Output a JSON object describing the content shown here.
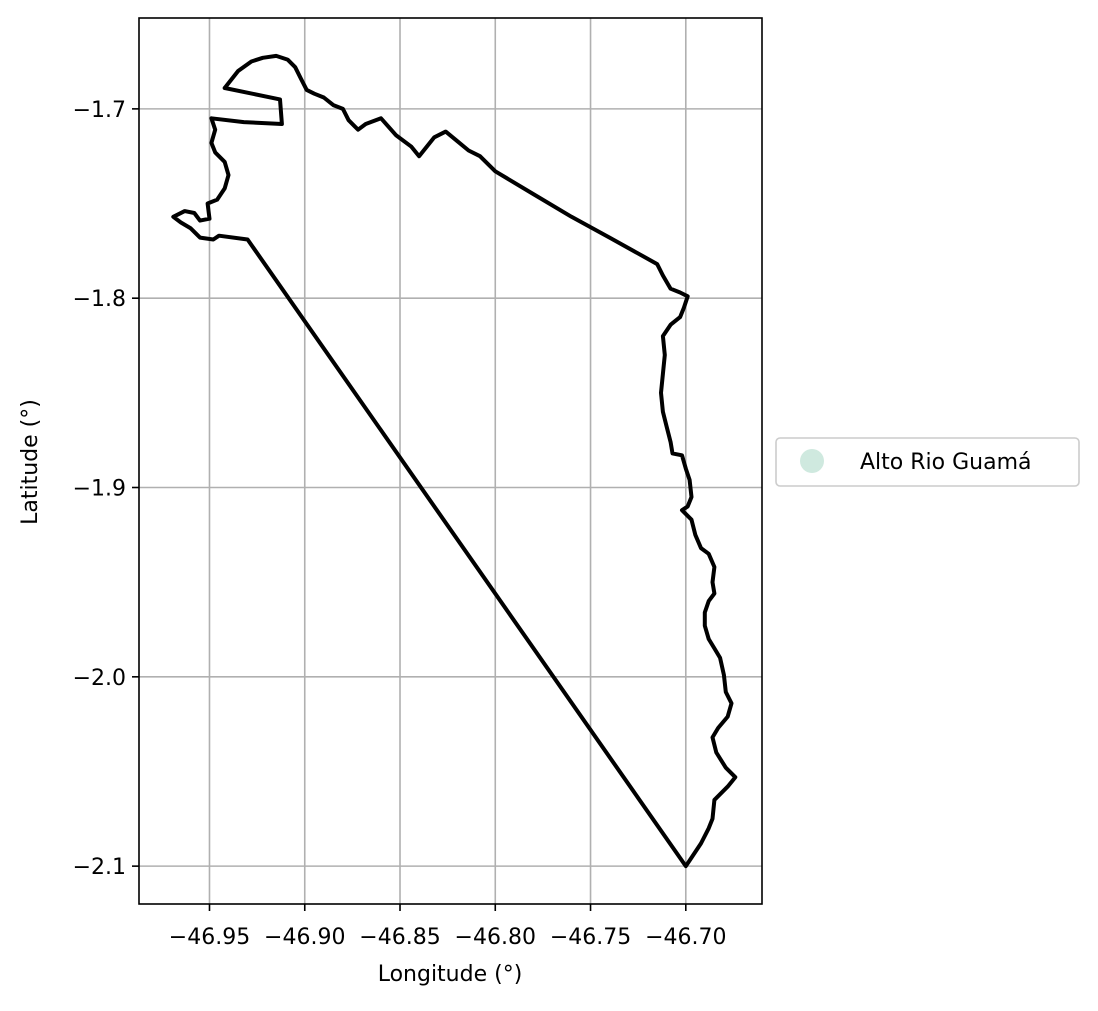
{
  "chart_data": {
    "type": "map",
    "xlabel": "Longitude (°)",
    "ylabel": "Latitude (°)",
    "xlim": [
      -46.987,
      -46.66
    ],
    "ylim": [
      -2.12,
      -1.652
    ],
    "xticks": [
      -46.95,
      -46.9,
      -46.85,
      -46.8,
      -46.75,
      -46.7
    ],
    "xtick_labels": [
      "−46.95",
      "−46.90",
      "−46.85",
      "−46.80",
      "−46.75",
      "−46.70"
    ],
    "yticks": [
      -1.7,
      -1.8,
      -1.9,
      -2.0,
      -2.1
    ],
    "ytick_labels": [
      "−1.7",
      "−1.8",
      "−1.9",
      "−2.0",
      "−2.1"
    ],
    "grid": true,
    "legend": {
      "placement": "center-right-outside",
      "entries": [
        {
          "label": "Alto Rio Guamá",
          "color": "#cfe9df",
          "marker": "circle"
        }
      ]
    },
    "boundary": {
      "name": "Alto Rio Guamá",
      "stroke_color": "#000000",
      "points": [
        [
          -46.942,
          -1.689
        ],
        [
          -46.935,
          -1.68
        ],
        [
          -46.928,
          -1.675
        ],
        [
          -46.922,
          -1.673
        ],
        [
          -46.915,
          -1.672
        ],
        [
          -46.909,
          -1.674
        ],
        [
          -46.905,
          -1.678
        ],
        [
          -46.902,
          -1.684
        ],
        [
          -46.899,
          -1.69
        ],
        [
          -46.895,
          -1.692
        ],
        [
          -46.89,
          -1.694
        ],
        [
          -46.885,
          -1.698
        ],
        [
          -46.88,
          -1.7
        ],
        [
          -46.877,
          -1.706
        ],
        [
          -46.874,
          -1.709
        ],
        [
          -46.872,
          -1.711
        ],
        [
          -46.868,
          -1.708
        ],
        [
          -46.86,
          -1.705
        ],
        [
          -46.852,
          -1.714
        ],
        [
          -46.844,
          -1.72
        ],
        [
          -46.84,
          -1.725
        ],
        [
          -46.836,
          -1.72
        ],
        [
          -46.832,
          -1.715
        ],
        [
          -46.826,
          -1.712
        ],
        [
          -46.82,
          -1.717
        ],
        [
          -46.814,
          -1.722
        ],
        [
          -46.808,
          -1.725
        ],
        [
          -46.804,
          -1.729
        ],
        [
          -46.8,
          -1.733
        ],
        [
          -46.78,
          -1.745
        ],
        [
          -46.76,
          -1.757
        ],
        [
          -46.74,
          -1.768
        ],
        [
          -46.715,
          -1.782
        ],
        [
          -46.712,
          -1.788
        ],
        [
          -46.708,
          -1.795
        ],
        [
          -46.703,
          -1.797
        ],
        [
          -46.699,
          -1.799
        ],
        [
          -46.701,
          -1.805
        ],
        [
          -46.703,
          -1.81
        ],
        [
          -46.708,
          -1.814
        ],
        [
          -46.712,
          -1.82
        ],
        [
          -46.711,
          -1.83
        ],
        [
          -46.712,
          -1.84
        ],
        [
          -46.713,
          -1.85
        ],
        [
          -46.712,
          -1.86
        ],
        [
          -46.71,
          -1.868
        ],
        [
          -46.708,
          -1.876
        ],
        [
          -46.707,
          -1.882
        ],
        [
          -46.702,
          -1.883
        ],
        [
          -46.7,
          -1.89
        ],
        [
          -46.698,
          -1.896
        ],
        [
          -46.697,
          -1.905
        ],
        [
          -46.699,
          -1.91
        ],
        [
          -46.702,
          -1.912
        ],
        [
          -46.697,
          -1.917
        ],
        [
          -46.695,
          -1.925
        ],
        [
          -46.692,
          -1.932
        ],
        [
          -46.688,
          -1.935
        ],
        [
          -46.685,
          -1.942
        ],
        [
          -46.686,
          -1.95
        ],
        [
          -46.685,
          -1.956
        ],
        [
          -46.688,
          -1.96
        ],
        [
          -46.69,
          -1.966
        ],
        [
          -46.69,
          -1.973
        ],
        [
          -46.688,
          -1.98
        ],
        [
          -46.685,
          -1.985
        ],
        [
          -46.682,
          -1.99
        ],
        [
          -46.68,
          -1.999
        ],
        [
          -46.679,
          -2.008
        ],
        [
          -46.676,
          -2.014
        ],
        [
          -46.678,
          -2.021
        ],
        [
          -46.683,
          -2.027
        ],
        [
          -46.686,
          -2.032
        ],
        [
          -46.684,
          -2.04
        ],
        [
          -46.679,
          -2.048
        ],
        [
          -46.674,
          -2.053
        ],
        [
          -46.678,
          -2.058
        ],
        [
          -46.685,
          -2.065
        ],
        [
          -46.686,
          -2.075
        ],
        [
          -46.688,
          -2.08
        ],
        [
          -46.692,
          -2.088
        ],
        [
          -46.698,
          -2.097
        ],
        [
          -46.7,
          -2.1
        ],
        [
          -46.93,
          -1.769
        ],
        [
          -46.945,
          -1.767
        ],
        [
          -46.948,
          -1.769
        ],
        [
          -46.955,
          -1.768
        ],
        [
          -46.96,
          -1.763
        ],
        [
          -46.965,
          -1.76
        ],
        [
          -46.969,
          -1.757
        ],
        [
          -46.963,
          -1.754
        ],
        [
          -46.958,
          -1.755
        ],
        [
          -46.955,
          -1.759
        ],
        [
          -46.95,
          -1.758
        ],
        [
          -46.951,
          -1.75
        ],
        [
          -46.946,
          -1.748
        ],
        [
          -46.942,
          -1.742
        ],
        [
          -46.94,
          -1.735
        ],
        [
          -46.942,
          -1.728
        ],
        [
          -46.947,
          -1.723
        ],
        [
          -46.949,
          -1.718
        ],
        [
          -46.947,
          -1.711
        ],
        [
          -46.949,
          -1.705
        ],
        [
          -46.932,
          -1.707
        ],
        [
          -46.912,
          -1.708
        ],
        [
          -46.913,
          -1.695
        ],
        [
          -46.942,
          -1.689
        ]
      ]
    }
  }
}
